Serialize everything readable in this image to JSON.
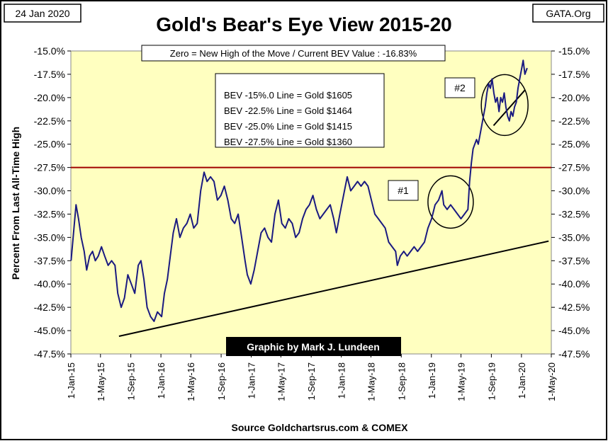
{
  "header": {
    "date": "24 Jan 2020",
    "title": "Gold's Bear's Eye View 2015-20",
    "source_tag": "GATA.Org"
  },
  "zero_note": "Zero = New High of the Move / Current  BEV Value : -16.83%",
  "bev_lines": [
    "BEV -15%.0 Line = Gold $1605",
    "BEV -22.5% Line = Gold $1464",
    "BEV -25.0% Line = Gold $1415",
    "BEV -27.5% Line = Gold $1360"
  ],
  "annotations": {
    "one": "#1",
    "two": "#2"
  },
  "credit": "Graphic by Mark J. Lundeen",
  "source": "Source Goldchartsrus.com & COMEX",
  "colors": {
    "plot_bg": "#ffffc0",
    "series": "#1a1a80",
    "hline": "#a00000",
    "trend": "#000000",
    "credit_bg": "#000000",
    "credit_fg": "#ffffff"
  },
  "chart_data": {
    "type": "line",
    "ylabel": "Percent  From Last  All-Time High",
    "ylim": [
      -47.5,
      -15.0
    ],
    "y_ticks": [
      -15.0,
      -17.5,
      -20.0,
      -22.5,
      -25.0,
      -27.5,
      -30.0,
      -32.5,
      -35.0,
      -37.5,
      -40.0,
      -42.5,
      -45.0,
      -47.5
    ],
    "y_tick_labels": [
      "-15.0%",
      "-17.5%",
      "-20.0%",
      "-22.5%",
      "-25.0%",
      "-27.5%",
      "-30.0%",
      "-32.5%",
      "-35.0%",
      "-37.5%",
      "-40.0%",
      "-42.5%",
      "-45.0%",
      "-47.5%"
    ],
    "x_ticks": [
      "2015-01-01",
      "2015-05-01",
      "2015-09-01",
      "2016-01-01",
      "2016-05-01",
      "2016-09-01",
      "2017-01-01",
      "2017-05-01",
      "2017-09-01",
      "2018-01-01",
      "2018-05-01",
      "2018-09-01",
      "2019-01-01",
      "2019-05-01",
      "2019-09-01",
      "2020-01-01",
      "2020-05-01"
    ],
    "x_tick_labels": [
      "1-Jan-15",
      "1-May-15",
      "1-Sep-15",
      "1-Jan-16",
      "1-May-16",
      "1-Sep-16",
      "1-Jan-17",
      "1-May-17",
      "1-Sep-17",
      "1-Jan-18",
      "1-May-18",
      "1-Sep-18",
      "1-Jan-19",
      "1-May-19",
      "1-Sep-19",
      "1-Jan-20",
      "1-May-20"
    ],
    "xlim": [
      "2015-01-01",
      "2020-05-01"
    ],
    "grid": false,
    "reference_line": {
      "y": -27.5
    },
    "trendlines": [
      {
        "from": [
          "2015-07-15",
          -45.6
        ],
        "to": [
          "2020-04-20",
          -35.4
        ]
      },
      {
        "from": [
          "2019-09-10",
          -23.0
        ],
        "to": [
          "2020-01-15",
          -19.2
        ]
      }
    ],
    "circles": [
      {
        "center": [
          "2019-03-20",
          -31.2
        ],
        "label": "#1"
      },
      {
        "center": [
          "2019-10-25",
          -20.8
        ],
        "label": "#2"
      }
    ],
    "series": [
      {
        "x": [
          "2015-01-02",
          "2015-01-12",
          "2015-01-22",
          "2015-02-01",
          "2015-02-12",
          "2015-02-24",
          "2015-03-06",
          "2015-03-18",
          "2015-03-30",
          "2015-04-10",
          "2015-04-22",
          "2015-05-05",
          "2015-05-18",
          "2015-06-01",
          "2015-06-15",
          "2015-06-29",
          "2015-07-10",
          "2015-07-24",
          "2015-08-06",
          "2015-08-20",
          "2015-09-03",
          "2015-09-17",
          "2015-10-01",
          "2015-10-12",
          "2015-10-24",
          "2015-11-06",
          "2015-11-20",
          "2015-12-04",
          "2015-12-18",
          "2016-01-04",
          "2016-01-15",
          "2016-01-27",
          "2016-02-08",
          "2016-02-20",
          "2016-03-04",
          "2016-03-18",
          "2016-04-01",
          "2016-04-15",
          "2016-04-29",
          "2016-05-13",
          "2016-05-27",
          "2016-06-10",
          "2016-06-24",
          "2016-07-06",
          "2016-07-20",
          "2016-08-03",
          "2016-08-17",
          "2016-08-31",
          "2016-09-14",
          "2016-09-28",
          "2016-10-12",
          "2016-10-26",
          "2016-11-09",
          "2016-11-23",
          "2016-12-07",
          "2016-12-16",
          "2016-12-30",
          "2017-01-13",
          "2017-01-27",
          "2017-02-10",
          "2017-02-24",
          "2017-03-10",
          "2017-03-24",
          "2017-04-07",
          "2017-04-21",
          "2017-05-05",
          "2017-05-19",
          "2017-06-02",
          "2017-06-16",
          "2017-06-30",
          "2017-07-14",
          "2017-07-28",
          "2017-08-11",
          "2017-08-25",
          "2017-09-08",
          "2017-09-22",
          "2017-10-06",
          "2017-10-20",
          "2017-11-03",
          "2017-11-17",
          "2017-12-01",
          "2017-12-12",
          "2017-12-26",
          "2018-01-10",
          "2018-01-25",
          "2018-02-08",
          "2018-02-22",
          "2018-03-08",
          "2018-03-22",
          "2018-04-05",
          "2018-04-19",
          "2018-05-03",
          "2018-05-17",
          "2018-05-31",
          "2018-06-14",
          "2018-06-28",
          "2018-07-12",
          "2018-07-26",
          "2018-08-09",
          "2018-08-16",
          "2018-08-28",
          "2018-09-11",
          "2018-09-25",
          "2018-10-09",
          "2018-10-23",
          "2018-11-06",
          "2018-11-20",
          "2018-12-04",
          "2018-12-18",
          "2019-01-02",
          "2019-01-16",
          "2019-01-30",
          "2019-02-13",
          "2019-02-20",
          "2019-03-06",
          "2019-03-20",
          "2019-04-03",
          "2019-04-17",
          "2019-05-01",
          "2019-05-15",
          "2019-05-29",
          "2019-06-05",
          "2019-06-12",
          "2019-06-19",
          "2019-06-26",
          "2019-07-03",
          "2019-07-10",
          "2019-07-17",
          "2019-07-24",
          "2019-07-31",
          "2019-08-07",
          "2019-08-14",
          "2019-08-21",
          "2019-08-28",
          "2019-09-04",
          "2019-09-11",
          "2019-09-18",
          "2019-09-25",
          "2019-10-02",
          "2019-10-09",
          "2019-10-16",
          "2019-10-23",
          "2019-10-30",
          "2019-11-06",
          "2019-11-13",
          "2019-11-20",
          "2019-11-27",
          "2019-12-04",
          "2019-12-11",
          "2019-12-18",
          "2019-12-25",
          "2020-01-01",
          "2020-01-08",
          "2020-01-15",
          "2020-01-24"
        ],
        "values": [
          -37.5,
          -34.5,
          -31.5,
          -33.0,
          -35.0,
          -36.5,
          -38.5,
          -37.0,
          -36.5,
          -37.5,
          -37.0,
          -36.0,
          -37.0,
          -38.0,
          -37.5,
          -38.0,
          -41.0,
          -42.5,
          -41.5,
          -39.0,
          -40.0,
          -41.0,
          -38.0,
          -37.5,
          -39.5,
          -42.5,
          -43.5,
          -44.0,
          -43.0,
          -43.5,
          -41.0,
          -39.5,
          -37.0,
          -34.5,
          -33.0,
          -35.0,
          -34.0,
          -33.5,
          -32.5,
          -34.0,
          -33.5,
          -30.0,
          -28.0,
          -29.0,
          -28.5,
          -29.0,
          -31.0,
          -30.5,
          -29.5,
          -31.0,
          -33.0,
          -33.5,
          -32.5,
          -35.0,
          -37.5,
          -39.0,
          -40.0,
          -38.5,
          -36.5,
          -34.5,
          -34.0,
          -35.0,
          -35.5,
          -32.5,
          -31.0,
          -33.5,
          -34.0,
          -33.0,
          -33.5,
          -35.0,
          -34.5,
          -33.0,
          -32.0,
          -31.5,
          -30.5,
          -32.0,
          -33.0,
          -32.5,
          -32.0,
          -31.5,
          -33.0,
          -34.5,
          -32.5,
          -30.5,
          -28.5,
          -30.0,
          -29.5,
          -29.0,
          -29.5,
          -29.0,
          -29.5,
          -31.0,
          -32.5,
          -33.0,
          -33.5,
          -34.0,
          -35.5,
          -36.0,
          -36.5,
          -38.0,
          -37.0,
          -36.5,
          -37.0,
          -36.5,
          -36.0,
          -36.5,
          -36.0,
          -35.5,
          -34.0,
          -33.0,
          -31.5,
          -31.0,
          -30.0,
          -31.5,
          -32.0,
          -31.5,
          -32.0,
          -32.5,
          -33.0,
          -32.5,
          -32.0,
          -29.0,
          -27.0,
          -25.5,
          -25.0,
          -24.5,
          -25.0,
          -24.0,
          -23.0,
          -22.0,
          -21.0,
          -19.5,
          -18.5,
          -19.0,
          -18.0,
          -19.5,
          -20.5,
          -20.0,
          -21.5,
          -20.0,
          -20.5,
          -19.5,
          -21.0,
          -22.0,
          -22.5,
          -21.5,
          -22.0,
          -21.0,
          -20.5,
          -19.0,
          -18.0,
          -17.0,
          -16.0,
          -17.5,
          -16.83
        ]
      }
    ]
  }
}
